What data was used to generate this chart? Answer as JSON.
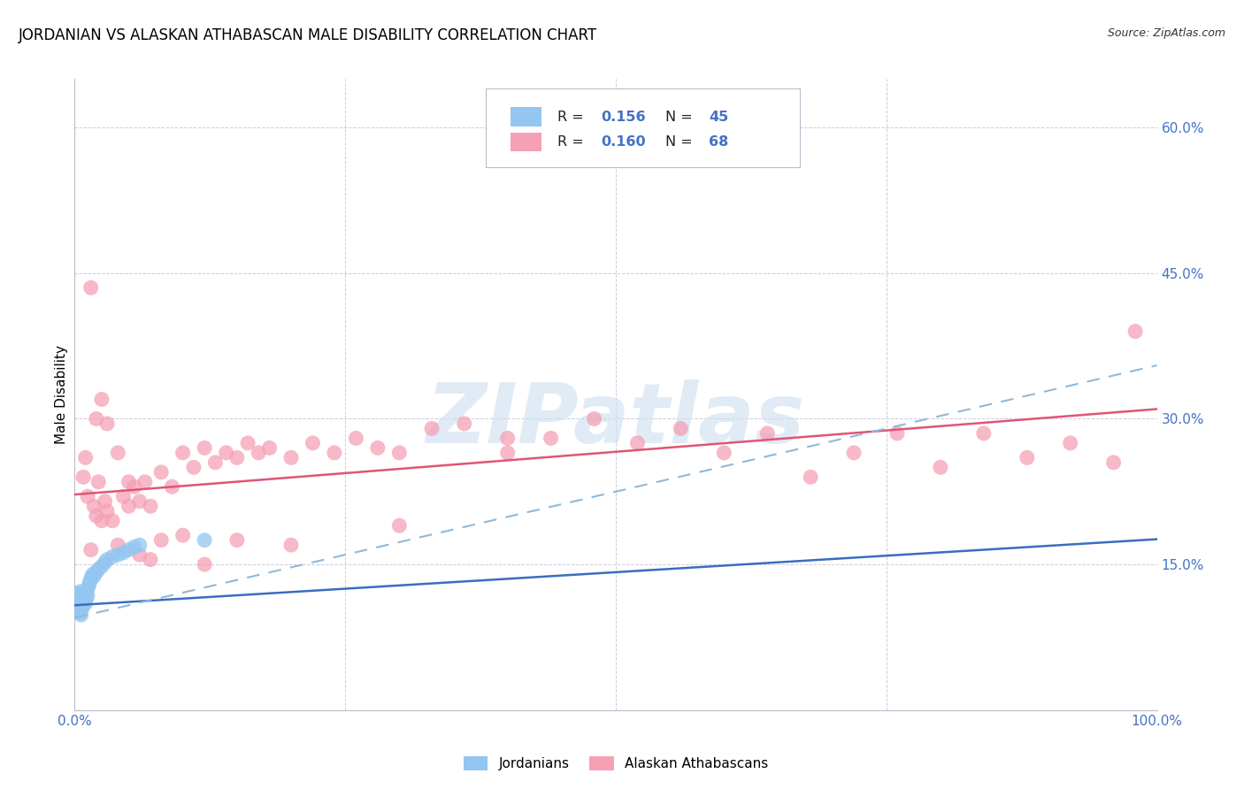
{
  "title": "JORDANIAN VS ALASKAN ATHABASCAN MALE DISABILITY CORRELATION CHART",
  "source": "Source: ZipAtlas.com",
  "ylabel": "Male Disability",
  "xlim": [
    0.0,
    1.0
  ],
  "ylim": [
    0.0,
    0.65
  ],
  "jordanian_color": "#93c6f0",
  "alaskan_color": "#f5a0b5",
  "jordanian_line_color": "#3a6dbf",
  "alaskan_line_color": "#e05575",
  "dashed_line_color": "#90b8d8",
  "watermark_color": "#ccdff0",
  "grid_color": "#ccccdd",
  "background_color": "#ffffff",
  "tick_color": "#4472c4",
  "title_fontsize": 12,
  "tick_fontsize": 11,
  "jordanian_x": [
    0.003,
    0.003,
    0.003,
    0.004,
    0.004,
    0.004,
    0.005,
    0.005,
    0.005,
    0.005,
    0.005,
    0.006,
    0.006,
    0.006,
    0.007,
    0.007,
    0.007,
    0.008,
    0.008,
    0.009,
    0.009,
    0.01,
    0.01,
    0.011,
    0.012,
    0.012,
    0.013,
    0.014,
    0.015,
    0.016,
    0.017,
    0.018,
    0.02,
    0.022,
    0.025,
    0.028,
    0.03,
    0.035,
    0.04,
    0.045,
    0.05,
    0.055,
    0.06,
    0.12,
    0.006
  ],
  "jordanian_y": [
    0.12,
    0.115,
    0.112,
    0.108,
    0.115,
    0.118,
    0.1,
    0.105,
    0.112,
    0.118,
    0.122,
    0.108,
    0.112,
    0.118,
    0.105,
    0.11,
    0.115,
    0.108,
    0.12,
    0.115,
    0.122,
    0.11,
    0.118,
    0.115,
    0.118,
    0.125,
    0.128,
    0.132,
    0.135,
    0.138,
    0.14,
    0.138,
    0.142,
    0.145,
    0.148,
    0.152,
    0.155,
    0.158,
    0.16,
    0.162,
    0.165,
    0.168,
    0.17,
    0.175,
    0.098
  ],
  "alaskan_x": [
    0.008,
    0.01,
    0.012,
    0.015,
    0.018,
    0.02,
    0.022,
    0.025,
    0.028,
    0.03,
    0.035,
    0.04,
    0.045,
    0.05,
    0.055,
    0.06,
    0.065,
    0.07,
    0.08,
    0.09,
    0.1,
    0.11,
    0.12,
    0.13,
    0.14,
    0.15,
    0.16,
    0.17,
    0.18,
    0.2,
    0.22,
    0.24,
    0.26,
    0.28,
    0.3,
    0.33,
    0.36,
    0.4,
    0.44,
    0.48,
    0.52,
    0.56,
    0.6,
    0.64,
    0.68,
    0.72,
    0.76,
    0.8,
    0.84,
    0.88,
    0.92,
    0.96,
    0.98,
    0.015,
    0.02,
    0.025,
    0.03,
    0.04,
    0.05,
    0.06,
    0.07,
    0.08,
    0.1,
    0.12,
    0.15,
    0.2,
    0.3,
    0.4
  ],
  "alaskan_y": [
    0.24,
    0.26,
    0.22,
    0.165,
    0.21,
    0.2,
    0.235,
    0.195,
    0.215,
    0.205,
    0.195,
    0.17,
    0.22,
    0.21,
    0.23,
    0.215,
    0.235,
    0.21,
    0.245,
    0.23,
    0.265,
    0.25,
    0.27,
    0.255,
    0.265,
    0.26,
    0.275,
    0.265,
    0.27,
    0.26,
    0.275,
    0.265,
    0.28,
    0.27,
    0.265,
    0.29,
    0.295,
    0.265,
    0.28,
    0.3,
    0.275,
    0.29,
    0.265,
    0.285,
    0.24,
    0.265,
    0.285,
    0.25,
    0.285,
    0.26,
    0.275,
    0.255,
    0.39,
    0.435,
    0.3,
    0.32,
    0.295,
    0.265,
    0.235,
    0.16,
    0.155,
    0.175,
    0.18,
    0.15,
    0.175,
    0.17,
    0.19,
    0.28
  ],
  "alaskan_slope": 0.088,
  "alaskan_intercept": 0.222,
  "jordanian_slope": 0.068,
  "jordanian_intercept": 0.108,
  "dashed_slope": 0.26,
  "dashed_intercept": 0.095
}
